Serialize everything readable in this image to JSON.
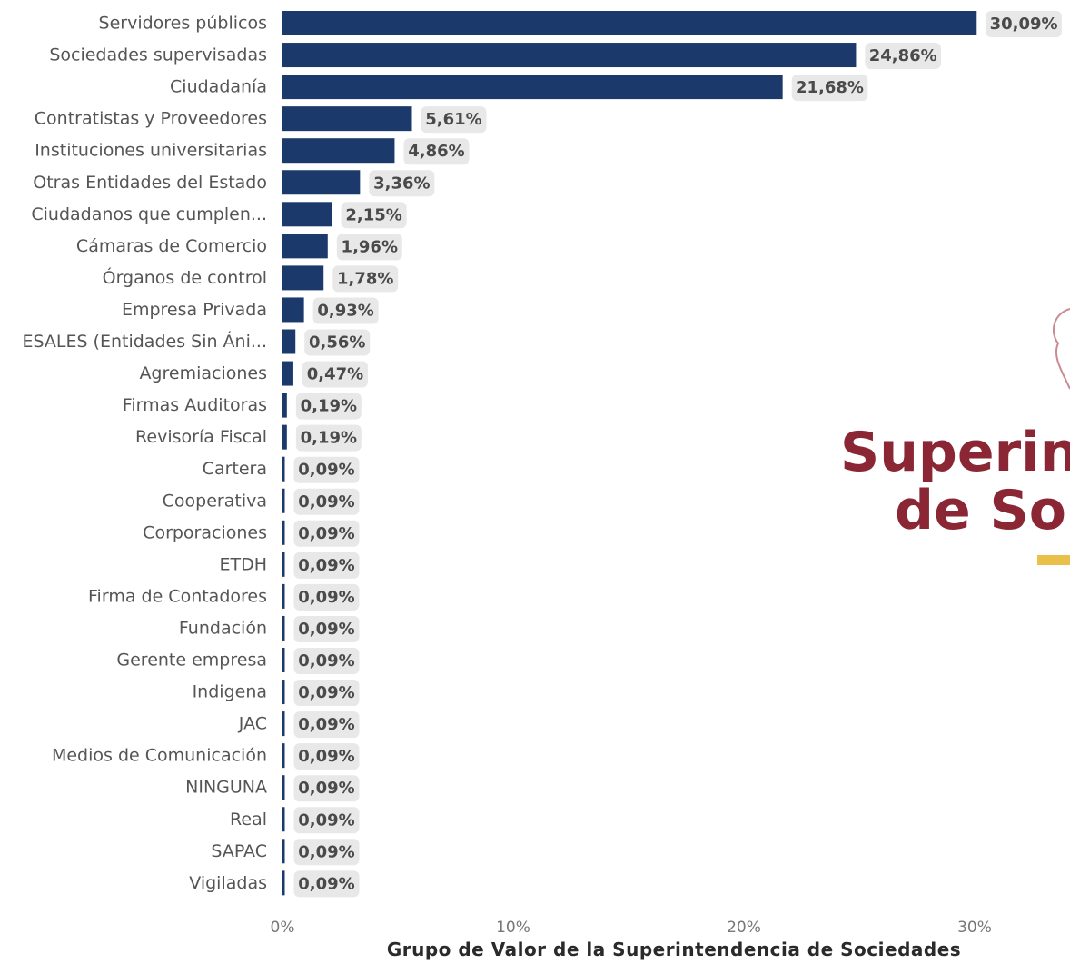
{
  "chart_data": {
    "type": "bar",
    "orientation": "horizontal",
    "title": "",
    "xlabel": "Grupo de Valor de la Superintendencia de Sociedades",
    "ylabel": "",
    "xlim": [
      0,
      34
    ],
    "x_ticks": [
      "0%",
      "10%",
      "20%",
      "30%"
    ],
    "x_tick_values": [
      0,
      10,
      20,
      30
    ],
    "grid": false,
    "bar_color": "#1b3a6b",
    "label_bg_color": "#e8e8e8",
    "categories": [
      "Servidores públicos",
      "Sociedades supervisadas",
      "Ciudadanía",
      "Contratistas y Proveedores",
      "Instituciones universitarias",
      "Otras Entidades del Estado",
      "Ciudadanos que cumplen...",
      "Cámaras de Comercio",
      "Órganos de control",
      "Empresa Privada",
      "ESALES (Entidades Sin Áni...",
      "Agremiaciones",
      "Firmas Auditoras",
      "Revisoría Fiscal",
      "Cartera",
      "Cooperativa",
      "Corporaciones",
      "ETDH",
      "Firma de Contadores",
      "Fundación",
      "Gerente empresa",
      "Indigena",
      "JAC",
      "Medios de Comunicación",
      "NINGUNA",
      "Real",
      "SAPAC",
      "Vigiladas"
    ],
    "values": [
      30.09,
      24.86,
      21.68,
      5.61,
      4.86,
      3.36,
      2.15,
      1.96,
      1.78,
      0.93,
      0.56,
      0.47,
      0.19,
      0.19,
      0.09,
      0.09,
      0.09,
      0.09,
      0.09,
      0.09,
      0.09,
      0.09,
      0.09,
      0.09,
      0.09,
      0.09,
      0.09,
      0.09
    ],
    "value_labels": [
      "30,09%",
      "24,86%",
      "21,68%",
      "5,61%",
      "4,86%",
      "3,36%",
      "2,15%",
      "1,96%",
      "1,78%",
      "0,93%",
      "0,56%",
      "0,47%",
      "0,19%",
      "0,19%",
      "0,09%",
      "0,09%",
      "0,09%",
      "0,09%",
      "0,09%",
      "0,09%",
      "0,09%",
      "0,09%",
      "0,09%",
      "0,09%",
      "0,09%",
      "0,09%",
      "0,09%",
      "0,09%"
    ]
  },
  "logo": {
    "line1": "Superin",
    "line2": "de So",
    "color": "#8b2635",
    "accent_color": "#e8c04a"
  }
}
